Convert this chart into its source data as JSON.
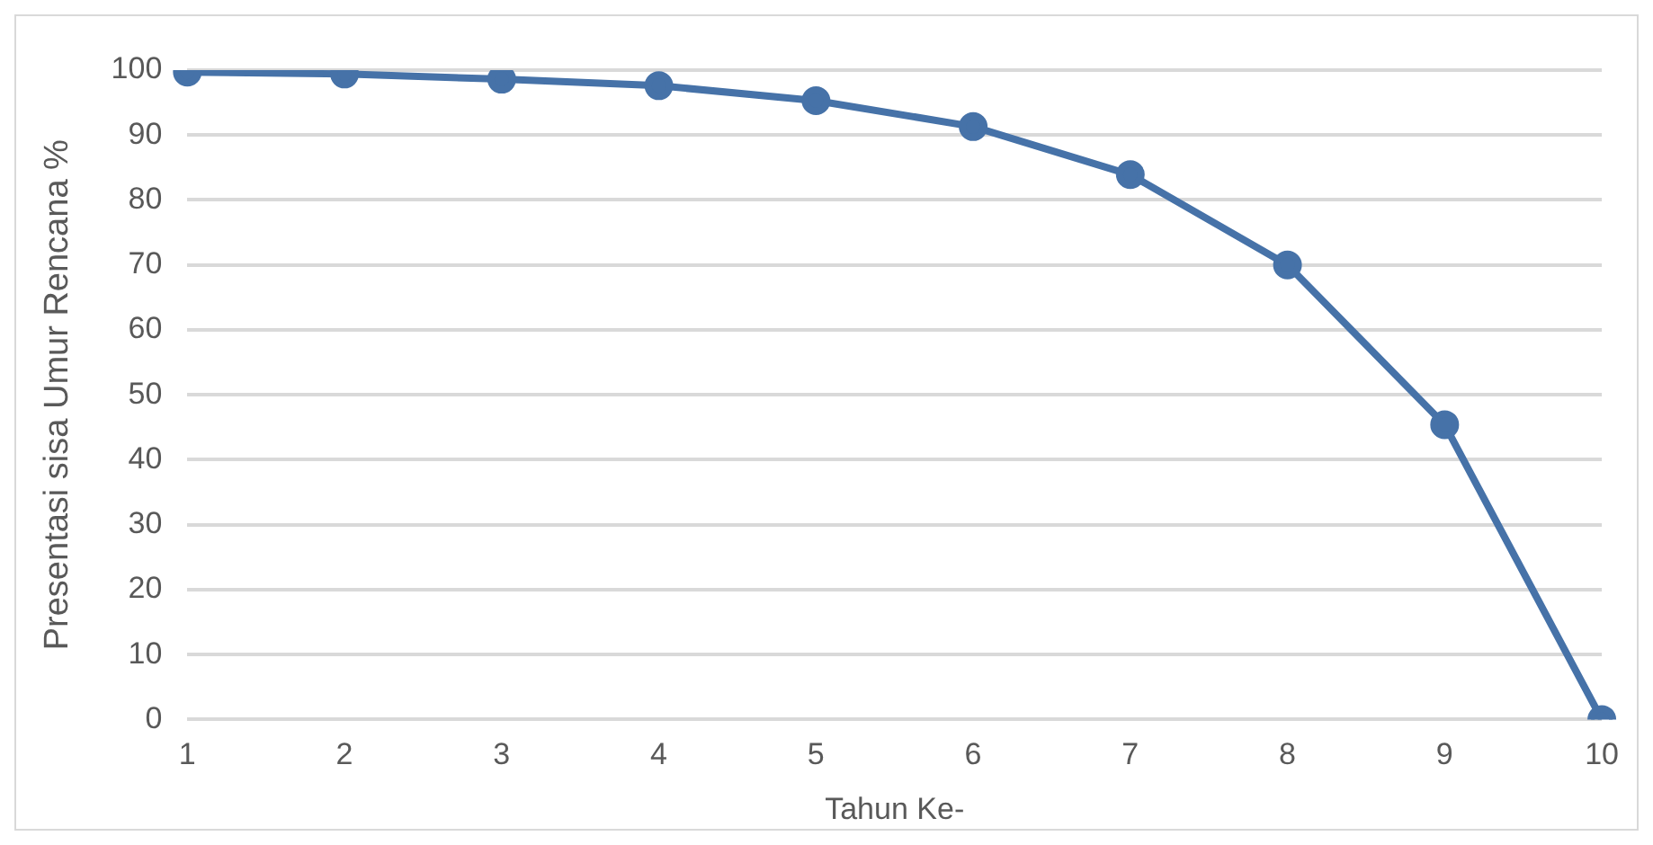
{
  "chart_data": {
    "type": "line",
    "xlabel": "Tahun Ke-",
    "ylabel": "Presentasi sisa Umur Rencana %",
    "categories": [
      "1",
      "2",
      "3",
      "4",
      "5",
      "6",
      "7",
      "8",
      "9",
      "10"
    ],
    "series": [
      {
        "color": "#4672a8",
        "values": [
          99.7,
          99.4,
          98.6,
          97.6,
          95.3,
          91.3,
          83.9,
          70.0,
          45.4,
          0
        ]
      }
    ],
    "ylim": [
      0,
      100
    ],
    "yticks": [
      0,
      10,
      20,
      30,
      40,
      50,
      60,
      70,
      80,
      90,
      100
    ],
    "grid": "y",
    "legend": false,
    "marker": "circle",
    "line_style": "solid"
  }
}
